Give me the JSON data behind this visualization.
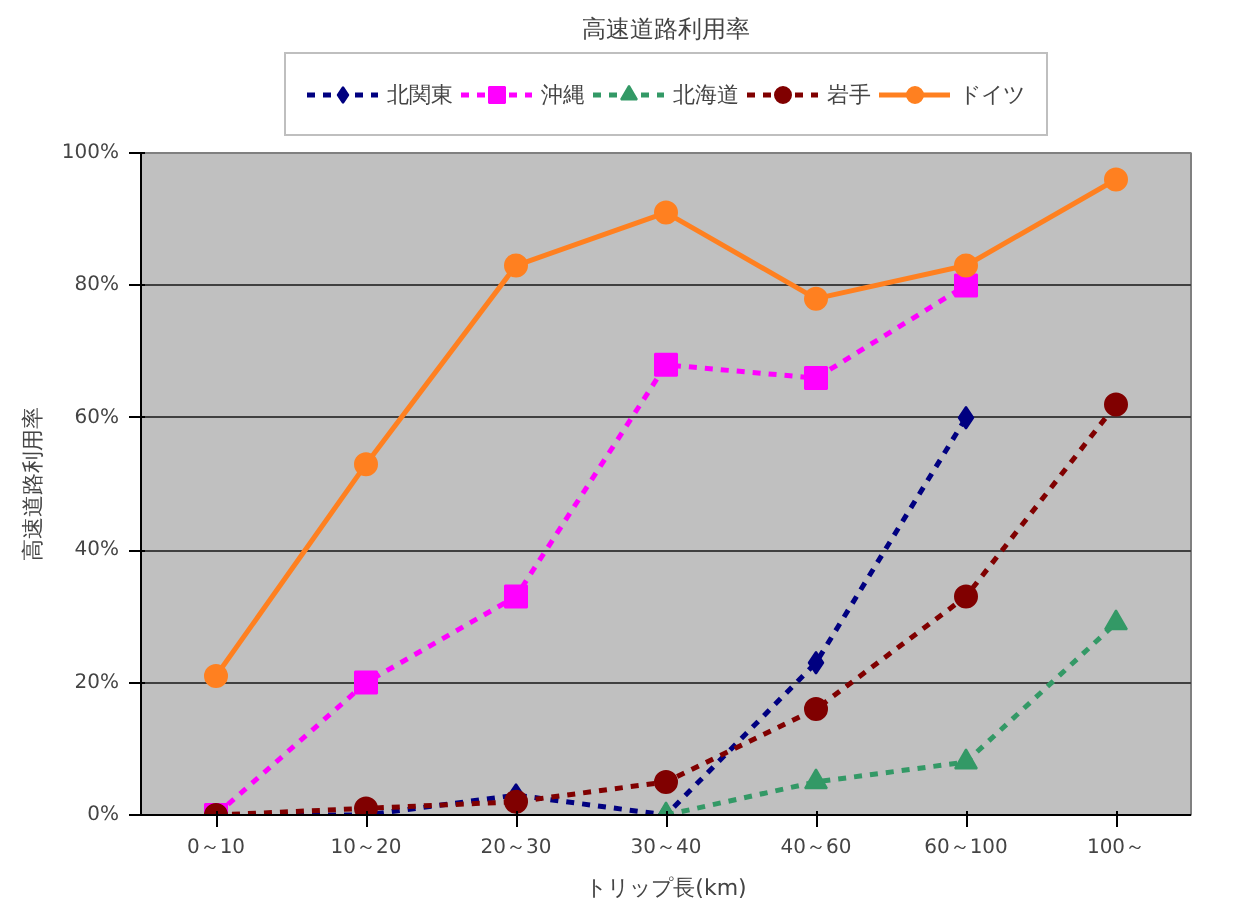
{
  "chart_data": {
    "type": "line",
    "title": "高速道路利用率",
    "xlabel": "トリップ長(km)",
    "ylabel": "高速道路利用率",
    "categories": [
      "0～10",
      "10～20",
      "20～30",
      "30～40",
      "40～60",
      "60～100",
      "100～"
    ],
    "series": [
      {
        "name": "北関東",
        "color": "#000080",
        "marker": "diamond",
        "line_style": "dashed",
        "values": [
          0,
          0,
          3,
          0,
          23,
          60,
          null
        ]
      },
      {
        "name": "沖縄",
        "color": "#ff00ff",
        "marker": "square",
        "line_style": "dashed",
        "values": [
          0,
          20,
          33,
          68,
          66,
          80,
          null
        ]
      },
      {
        "name": "北海道",
        "color": "#339966",
        "marker": "triangle",
        "line_style": "dashed",
        "values": [
          null,
          null,
          null,
          0,
          5,
          8,
          29
        ]
      },
      {
        "name": "岩手",
        "color": "#800000",
        "marker": "circle",
        "line_style": "dashed",
        "values": [
          0,
          1,
          2,
          5,
          16,
          33,
          62
        ]
      },
      {
        "name": "ドイツ",
        "color": "#ff8020",
        "marker": "circle",
        "line_style": "solid",
        "values": [
          21,
          53,
          83,
          91,
          78,
          83,
          96
        ]
      }
    ],
    "ylim": [
      0,
      100
    ],
    "yticks": [
      {
        "value": 0,
        "label": "0%"
      },
      {
        "value": 20,
        "label": "20%"
      },
      {
        "value": 40,
        "label": "40%"
      },
      {
        "value": 60,
        "label": "60%"
      },
      {
        "value": 80,
        "label": "80%"
      },
      {
        "value": 100,
        "label": "100%"
      }
    ],
    "grid": "y",
    "legend": "top"
  }
}
